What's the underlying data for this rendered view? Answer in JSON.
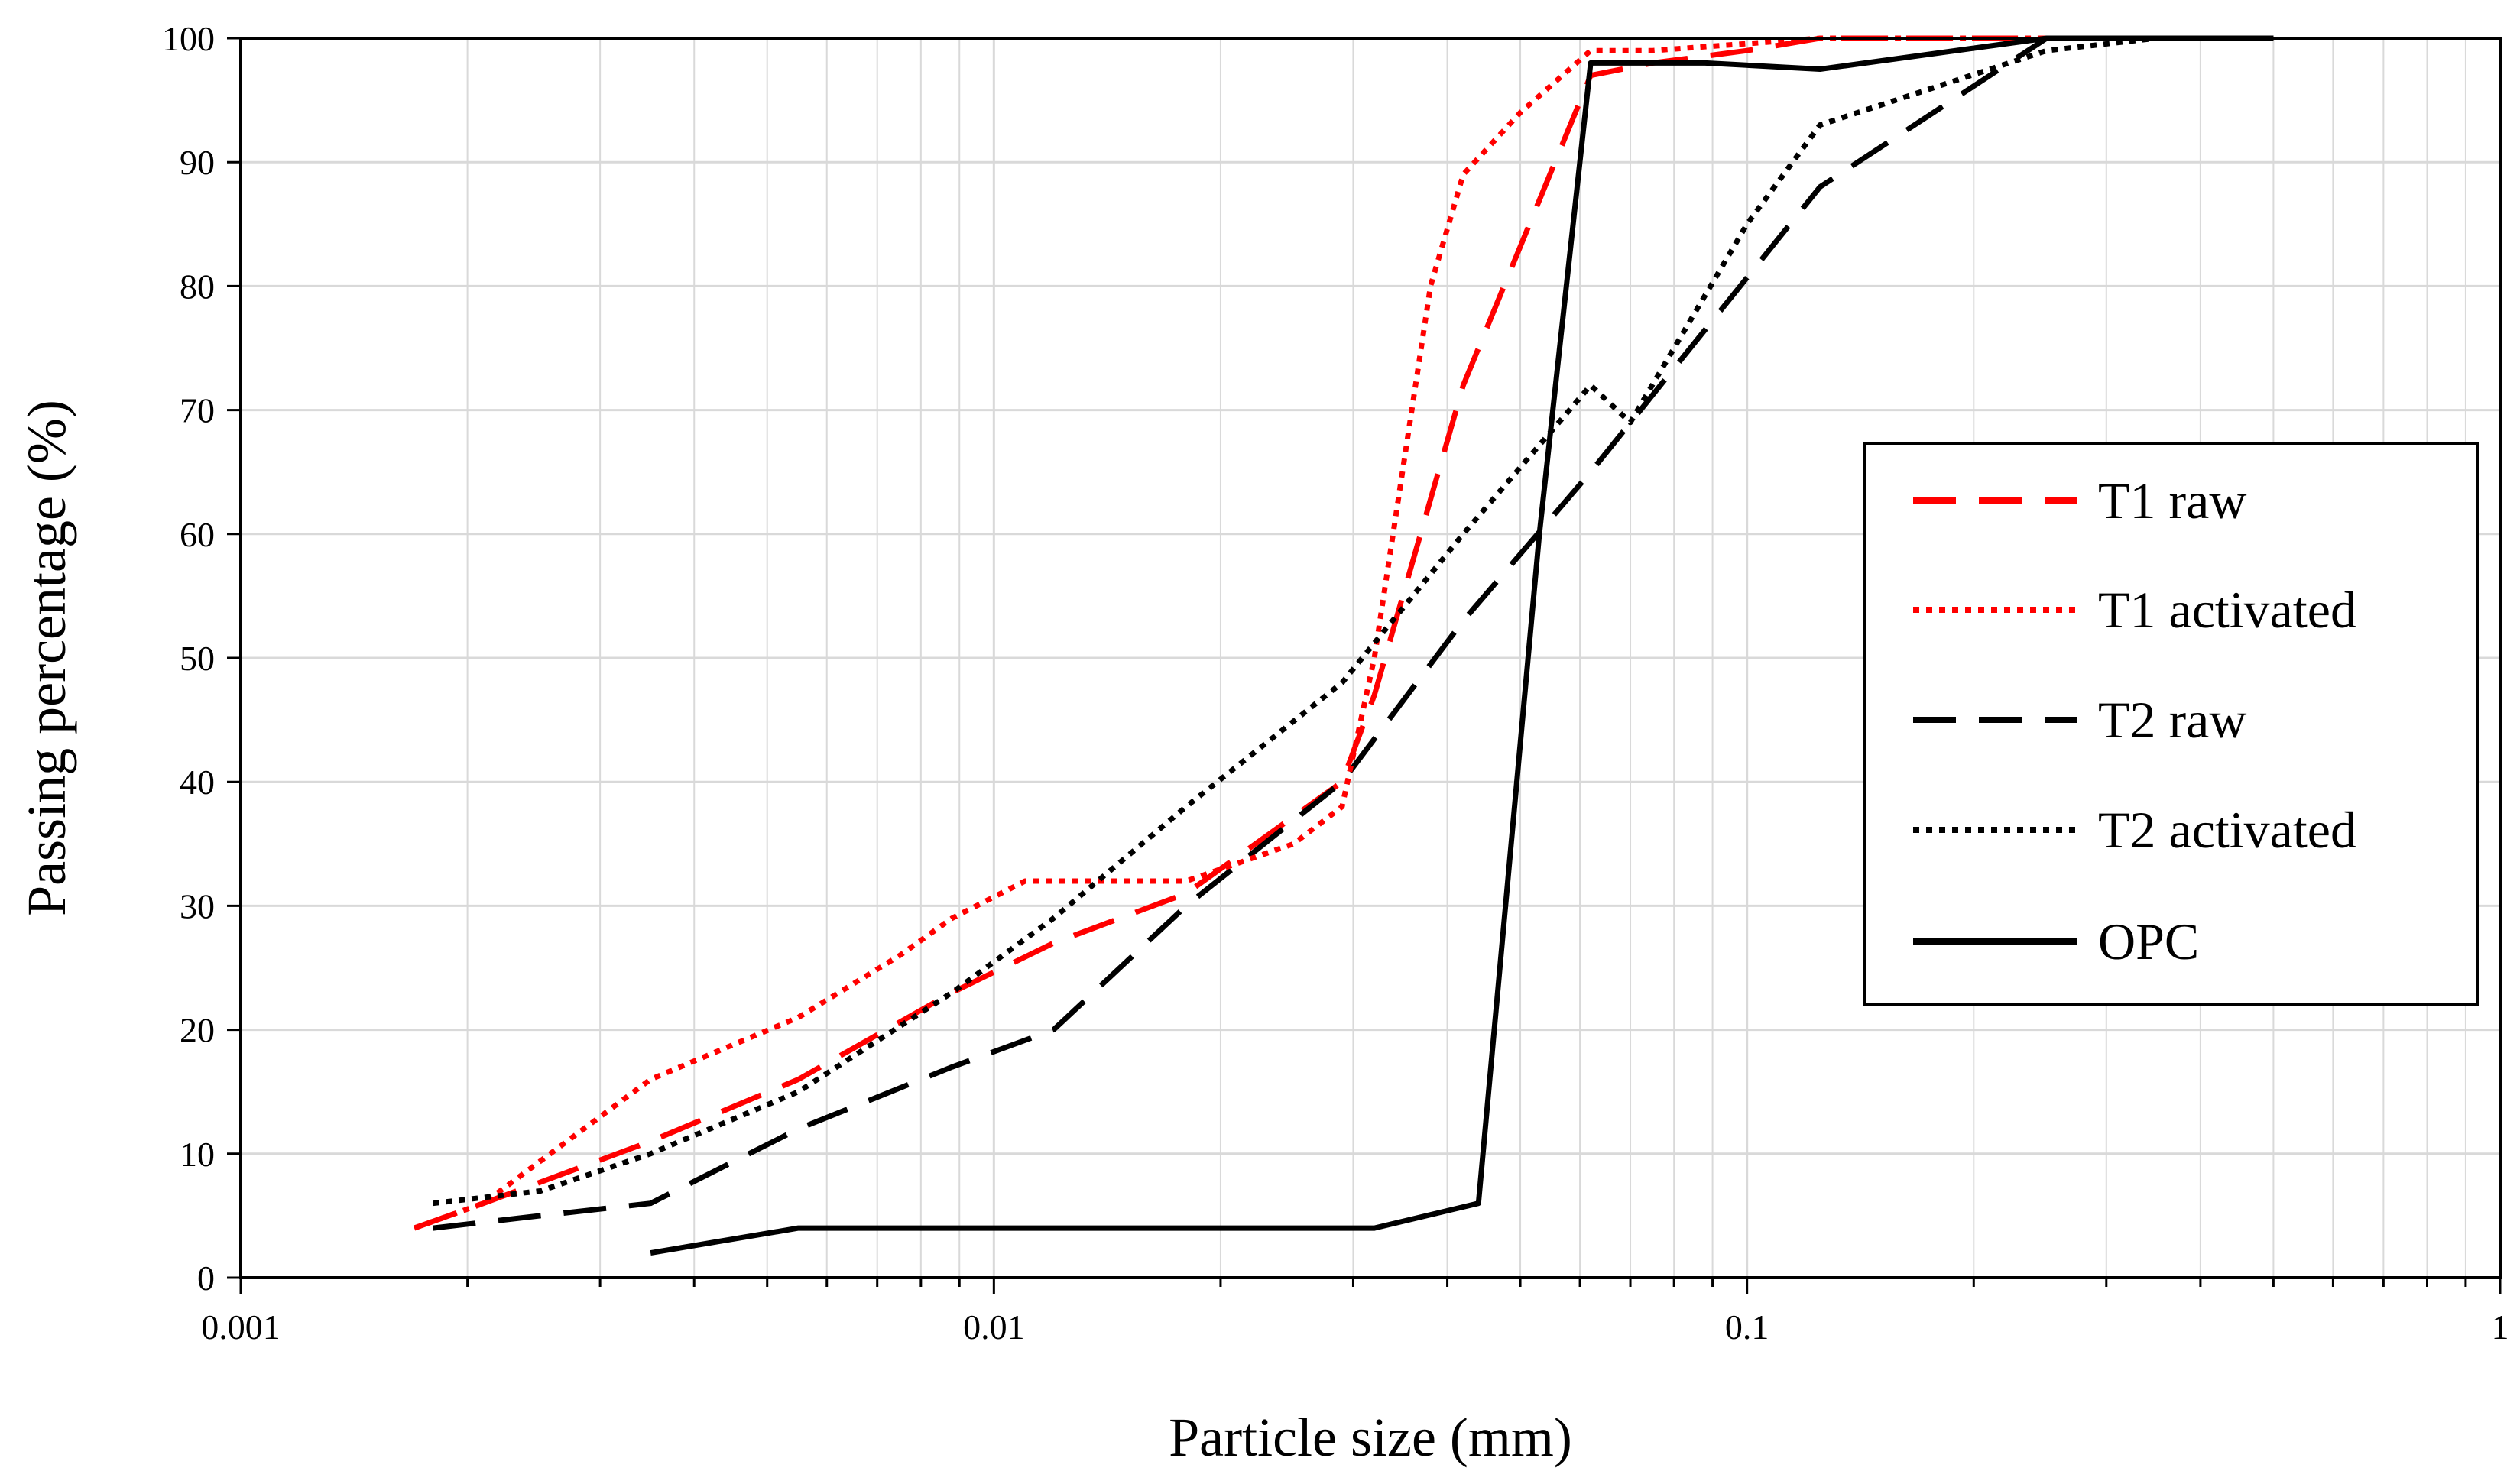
{
  "chart_data": {
    "type": "line",
    "title": "",
    "xlabel": "Particle size (mm)",
    "ylabel": "Passing percentage (%)",
    "x_scale": "log",
    "xlim": [
      0.001,
      1
    ],
    "ylim": [
      0,
      100
    ],
    "x_ticks": [
      "0.001",
      "0.01",
      "0.1",
      "1"
    ],
    "y_ticks": [
      "0",
      "10",
      "20",
      "30",
      "40",
      "50",
      "60",
      "70",
      "80",
      "90",
      "100"
    ],
    "grid": true,
    "legend_position": "right",
    "series": [
      {
        "name": "T1 raw",
        "color": "#ff0000",
        "style": "dashed",
        "x": [
          0.0017,
          0.0021,
          0.0035,
          0.0055,
          0.0088,
          0.012,
          0.018,
          0.029,
          0.032,
          0.042,
          0.062,
          0.075,
          0.1,
          0.125,
          0.25
        ],
        "y": [
          4,
          6,
          11,
          16,
          23,
          27,
          31,
          40,
          47,
          72,
          97,
          98,
          99,
          100,
          100
        ]
      },
      {
        "name": "T1 activated",
        "color": "#ff0000",
        "style": "dotted",
        "x": [
          0.0017,
          0.0021,
          0.0035,
          0.0055,
          0.0075,
          0.0088,
          0.011,
          0.012,
          0.018,
          0.025,
          0.029,
          0.032,
          0.038,
          0.042,
          0.05,
          0.062,
          0.075,
          0.125,
          0.25,
          0.5
        ],
        "y": [
          4,
          6,
          16,
          21,
          26,
          29,
          32,
          32,
          32,
          35,
          38,
          50,
          80,
          89,
          94,
          99,
          99,
          100,
          100,
          100
        ]
      },
      {
        "name": "T2 raw",
        "color": "#000000",
        "style": "dashed",
        "x": [
          0.0018,
          0.0025,
          0.0035,
          0.0055,
          0.0088,
          0.012,
          0.018,
          0.029,
          0.042,
          0.062,
          0.125,
          0.25
        ],
        "y": [
          4,
          5,
          6,
          12,
          17,
          20,
          30,
          40,
          53,
          65,
          88,
          100
        ]
      },
      {
        "name": "T2 activated",
        "color": "#000000",
        "style": "dotted",
        "x": [
          0.0018,
          0.0025,
          0.0035,
          0.0055,
          0.0088,
          0.012,
          0.018,
          0.029,
          0.042,
          0.062,
          0.07,
          0.1,
          0.125,
          0.25,
          0.35,
          0.5
        ],
        "y": [
          6,
          7,
          10,
          15,
          23,
          29,
          38,
          48,
          60,
          72,
          69,
          85,
          93,
          99,
          100,
          100
        ]
      },
      {
        "name": "OPC",
        "color": "#000000",
        "style": "solid",
        "x": [
          0.0035,
          0.0055,
          0.0088,
          0.018,
          0.032,
          0.044,
          0.053,
          0.062,
          0.088,
          0.125,
          0.25,
          0.5
        ],
        "y": [
          2,
          4,
          4,
          4,
          4,
          6,
          60,
          98,
          98,
          97.5,
          100,
          100
        ]
      }
    ]
  }
}
